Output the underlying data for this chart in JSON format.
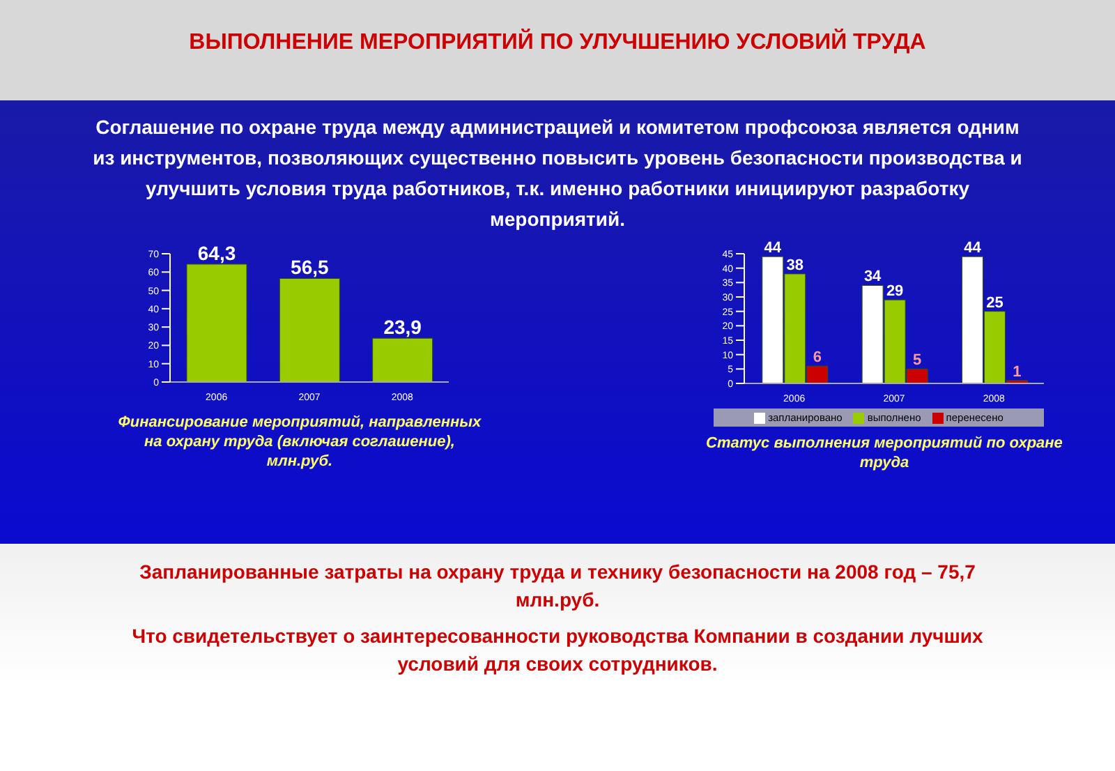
{
  "chart_data": [
    {
      "type": "bar",
      "title": "ВЫПОЛНЕНИЕ МЕРОПРИЯТИЙ ПО УЛУЧШЕНИЮ УСЛОВИЙ ТРУДА",
      "subtitle": "Соглашение по охране труда между администрацией и комитетом профсоюза является одним из инструментов, позволяющих существенно повысить уровень безопасности производства и улучшить условия труда работников, т.к. именно работники инициируют разработку мероприятий.",
      "categories": [
        "2006",
        "2007",
        "2008"
      ],
      "values": [
        64.3,
        56.5,
        23.9
      ],
      "value_labels": [
        "64,3",
        "56,5",
        "23,9"
      ],
      "color": "#99cc00",
      "ylim": [
        0,
        70
      ],
      "yticks": [
        0,
        10,
        20,
        30,
        40,
        50,
        60,
        70
      ],
      "grid": false,
      "legend": false,
      "annotations": [
        "Финансирование мероприятий, направленных на охрану труда (включая соглашение), млн.руб."
      ]
    },
    {
      "type": "bar",
      "categories": [
        "2006",
        "2007",
        "2008"
      ],
      "series": [
        {
          "name": "запланировано",
          "color": "#ffffff",
          "values": [
            44,
            34,
            44
          ]
        },
        {
          "name": "выполнено",
          "color": "#99cc00",
          "values": [
            38,
            29,
            25
          ]
        },
        {
          "name": "перенесено",
          "color": "#cc0000",
          "values": [
            6,
            5,
            1
          ]
        }
      ],
      "ylim": [
        0,
        45
      ],
      "yticks": [
        0,
        5,
        10,
        15,
        20,
        25,
        30,
        35,
        40,
        45
      ],
      "grid": false,
      "legend": "bottom",
      "data_labels": true,
      "annotations": [
        "Статус выполнения мероприятий по охране труда",
        "Запланированные затраты на  охрану труда и технику безопасности на 2008 год – 75,7 млн.руб.",
        "Что свидетельствует о заинтересованности руководства Компании в создании лучших условий для своих сотрудников."
      ]
    }
  ]
}
